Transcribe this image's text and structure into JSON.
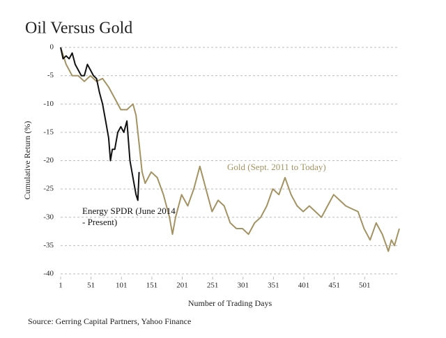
{
  "chart_data": {
    "type": "line",
    "title": "Oil Versus Gold",
    "x_label": "Number of Trading Days",
    "y_label": "Cumulative Return (%)",
    "source": "Source: Gerring Capital Partners, Yahoo Finance",
    "xlim": [
      1,
      558
    ],
    "ylim": [
      -40,
      0
    ],
    "xticks": [
      1,
      51,
      101,
      151,
      201,
      251,
      301,
      351,
      401,
      451,
      501
    ],
    "yticks": [
      0,
      -5,
      -10,
      -15,
      -20,
      -25,
      -30,
      -35,
      -40
    ],
    "grid": true,
    "series": [
      {
        "name": "Gold (Sept. 2011 to Today)",
        "color": "#a39262",
        "x": [
          1,
          10,
          20,
          30,
          40,
          50,
          60,
          70,
          80,
          90,
          100,
          110,
          120,
          125,
          130,
          135,
          140,
          150,
          160,
          170,
          180,
          185,
          190,
          200,
          210,
          220,
          230,
          240,
          250,
          260,
          270,
          280,
          290,
          300,
          310,
          320,
          330,
          340,
          350,
          360,
          370,
          380,
          390,
          400,
          410,
          420,
          430,
          440,
          450,
          460,
          470,
          480,
          490,
          500,
          510,
          520,
          530,
          540,
          545,
          550,
          558
        ],
        "values": [
          0,
          -3,
          -5,
          -5,
          -6,
          -5,
          -6,
          -5.5,
          -7,
          -9,
          -11,
          -11,
          -10,
          -12,
          -17,
          -22,
          -24,
          -22,
          -23,
          -26,
          -30,
          -33,
          -30,
          -26,
          -28,
          -25,
          -21,
          -25,
          -29,
          -27,
          -28,
          -31,
          -32,
          -32,
          -33,
          -31,
          -30,
          -28,
          -25,
          -26,
          -23,
          -26,
          -28,
          -29,
          -28,
          -29,
          -30,
          -28,
          -26,
          -27,
          -28,
          -28.5,
          -29,
          -32,
          -34,
          -31,
          -33,
          -36,
          -34,
          -35,
          -32
        ]
      },
      {
        "name": "Energy SPDR (June 2014 - Present)",
        "color": "#111111",
        "x": [
          1,
          5,
          10,
          15,
          20,
          25,
          30,
          35,
          40,
          45,
          50,
          55,
          60,
          65,
          70,
          75,
          80,
          83,
          86,
          90,
          95,
          100,
          105,
          110,
          115,
          120,
          125,
          128,
          130
        ],
        "values": [
          0,
          -2,
          -1.5,
          -2,
          -1,
          -3,
          -4,
          -5,
          -5,
          -3,
          -4,
          -5,
          -5.5,
          -8,
          -10,
          -13,
          -16,
          -20,
          -18,
          -18,
          -15,
          -14,
          -15,
          -13,
          -20,
          -23,
          -26,
          -27,
          -22
        ]
      }
    ]
  }
}
